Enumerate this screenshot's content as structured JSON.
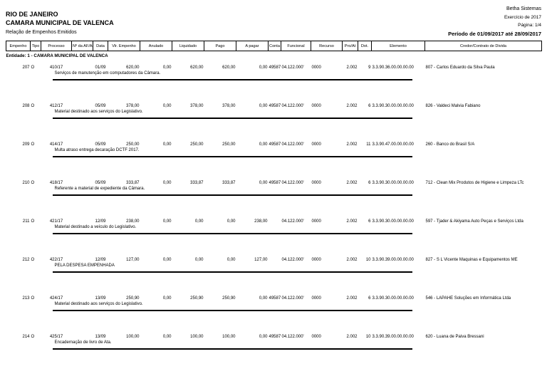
{
  "page": {
    "brand": "Betha Sistemas",
    "exercise": "Exercício de 2017",
    "page_number": "Página: 1/4",
    "period": "Período de 01/09/2017 até 28/09/2017",
    "state": "RIO DE JANEIRO",
    "entity_title": "CAMARA MUNICIPAL DE VALENCA",
    "report_title": "Relação de Empenhos Emitidos",
    "entity_line": "Entidade: 1 - CAMARA MUNICIPAL DE VALENCA"
  },
  "table": {
    "columns": [
      "Empenho",
      "Tipo",
      "Processo",
      "Nº da AF/Ano",
      "Data",
      "Vlr. Empenho",
      "Anulado",
      "Liquidado",
      "Pago",
      "A pagar",
      "Conta",
      "Funcional",
      "Recurso",
      "Pro/At",
      "Dot.",
      "Elemento",
      "Credor/Contrato de Divida"
    ],
    "rows": [
      {
        "empenho": "207",
        "tipo": "O",
        "processo": "410/17",
        "af_ano": "",
        "data": "01/09",
        "vlr_empenho": "620,00",
        "anulado": "0,00",
        "liquidado": "620,00",
        "pago": "620,00",
        "a_pagar": "0,00",
        "conta": "49587",
        "funcional": "04.122.000'",
        "recurso": "0000",
        "pro_at": "2.002",
        "dot": "9",
        "elemento": "3.3.90.36.00.00.00.00",
        "credor": "807 - Carlos Eduardo da Silva Paula",
        "descricao": "Serviços de manutenção em computadores da Câmara."
      },
      {
        "empenho": "208",
        "tipo": "O",
        "processo": "412/17",
        "af_ano": "",
        "data": "05/09",
        "vlr_empenho": "378,00",
        "anulado": "0,00",
        "liquidado": "378,00",
        "pago": "378,00",
        "a_pagar": "0,00",
        "conta": "49587",
        "funcional": "04.122.000'",
        "recurso": "0000",
        "pro_at": "2.002",
        "dot": "6",
        "elemento": "3.3.90.30.00.00.00.00",
        "credor": "826 - Valdeci Malvia Fabiano",
        "descricao": "Material destinado aos serviços do Legislativo."
      },
      {
        "empenho": "209",
        "tipo": "O",
        "processo": "414/17",
        "af_ano": "",
        "data": "05/09",
        "vlr_empenho": "250,00",
        "anulado": "0,00",
        "liquidado": "250,00",
        "pago": "250,00",
        "a_pagar": "0,00",
        "conta": "49587",
        "funcional": "04.122.000'",
        "recurso": "0000",
        "pro_at": "2.002",
        "dot": "11",
        "elemento": "3.3.90.47.00.00.00.00",
        "credor": "260 - Banco do Brasil S/A",
        "descricao": "Multa atraso entrega decaração DCTF 2017."
      },
      {
        "empenho": "210",
        "tipo": "O",
        "processo": "418/17",
        "af_ano": "",
        "data": "05/09",
        "vlr_empenho": "333,87",
        "anulado": "0,00",
        "liquidado": "333,87",
        "pago": "333,87",
        "a_pagar": "0,00",
        "conta": "49587",
        "funcional": "04.122.000'",
        "recurso": "0000",
        "pro_at": "2.002",
        "dot": "6",
        "elemento": "3.3.90.30.00.00.00.00",
        "credor": "712 - Clean Mix Produtos de Higiene e Limpeza LTc",
        "descricao": "Referente a material de expediente da Câmara."
      },
      {
        "empenho": "211",
        "tipo": "O",
        "processo": "421/17",
        "af_ano": "",
        "data": "12/09",
        "vlr_empenho": "238,00",
        "anulado": "0,00",
        "liquidado": "0,00",
        "pago": "0,00",
        "a_pagar": "238,00",
        "conta": "",
        "funcional": "04.122.000'",
        "recurso": "0000",
        "pro_at": "2.002",
        "dot": "6",
        "elemento": "3.3.90.30.00.00.00.00",
        "credor": "597 - Tjader & Akiyama Auto Peças e Serviços Ltda",
        "descricao": "Material destinado a veículo do Legislativo."
      },
      {
        "empenho": "212",
        "tipo": "O",
        "processo": "422/17",
        "af_ano": "",
        "data": "12/09",
        "vlr_empenho": "127,00",
        "anulado": "0,00",
        "liquidado": "0,00",
        "pago": "0,00",
        "a_pagar": "127,00",
        "conta": "",
        "funcional": "04.122.000'",
        "recurso": "0000",
        "pro_at": "2.002",
        "dot": "10",
        "elemento": "3.3.90.39.00.00.00.00",
        "credor": "827 - S L Vicente Maquinas e Equipamentos ME",
        "descricao": "PELA DESPESA EMPENHADA"
      },
      {
        "empenho": "213",
        "tipo": "O",
        "processo": "424/17",
        "af_ano": "",
        "data": "13/09",
        "vlr_empenho": "250,90",
        "anulado": "0,00",
        "liquidado": "250,90",
        "pago": "250,90",
        "a_pagar": "0,00",
        "conta": "49587",
        "funcional": "04.122.000'",
        "recurso": "0000",
        "pro_at": "2.002",
        "dot": "6",
        "elemento": "3.3.90.30.00.00.00.00",
        "credor": "546 - LAPAHE Soluções em Informática Ltda",
        "descricao": "Material destinado aos serviços do Legislativo."
      },
      {
        "empenho": "214",
        "tipo": "O",
        "processo": "425/17",
        "af_ano": "",
        "data": "13/09",
        "vlr_empenho": "100,00",
        "anulado": "0,00",
        "liquidado": "100,00",
        "pago": "100,00",
        "a_pagar": "0,00",
        "conta": "49587",
        "funcional": "04.122.000'",
        "recurso": "0000",
        "pro_at": "2.002",
        "dot": "10",
        "elemento": "3.3.90.39.00.00.00.00",
        "credor": "620 - Luana de Paiva Bressani",
        "descricao": "Encadernação de livro de Ata."
      }
    ]
  }
}
